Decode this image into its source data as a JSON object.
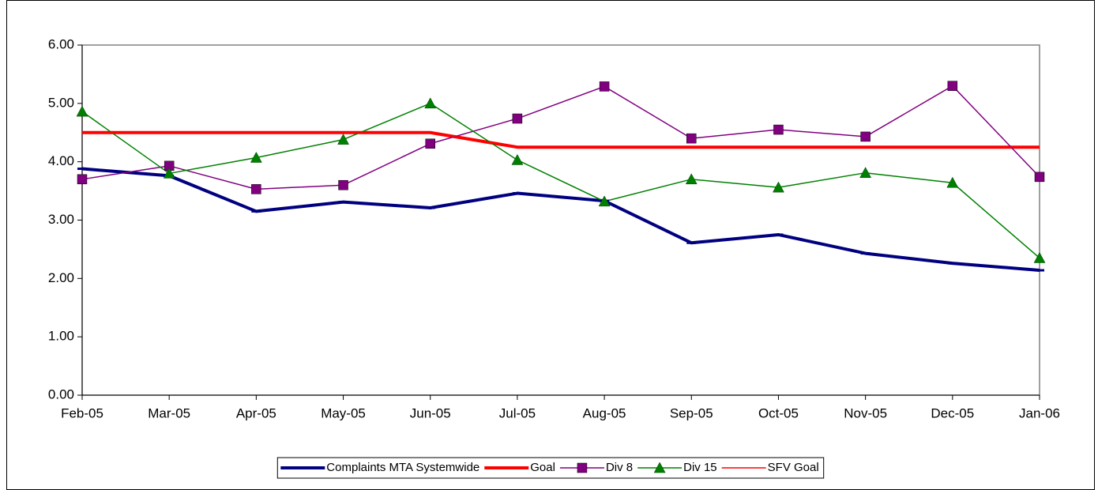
{
  "chart_data": {
    "type": "line",
    "categories": [
      "Feb-05",
      "Mar-05",
      "Apr-05",
      "May-05",
      "Jun-05",
      "Jul-05",
      "Aug-05",
      "Sep-05",
      "Oct-05",
      "Nov-05",
      "Dec-05",
      "Jan-06"
    ],
    "series": [
      {
        "name": "Complaints MTA Systemwide",
        "color": "#000080",
        "width": 4,
        "marker": "dash",
        "values": [
          3.88,
          3.76,
          3.15,
          3.31,
          3.21,
          3.46,
          3.33,
          2.61,
          2.75,
          2.43,
          2.26,
          2.14
        ]
      },
      {
        "name": "Goal",
        "color": "#ff0000",
        "width": 4,
        "marker": "none",
        "values": [
          4.5,
          4.5,
          4.5,
          4.5,
          4.5,
          4.25,
          4.25,
          4.25,
          4.25,
          4.25,
          4.25,
          4.25
        ]
      },
      {
        "name": "Div 8",
        "color": "#800080",
        "width": 1.5,
        "marker": "square",
        "values": [
          3.7,
          3.93,
          3.53,
          3.6,
          4.31,
          4.74,
          5.29,
          4.4,
          4.55,
          4.43,
          5.3,
          3.74
        ]
      },
      {
        "name": "Div 15",
        "color": "#008000",
        "width": 1.5,
        "marker": "triangle",
        "values": [
          4.86,
          3.8,
          4.07,
          4.38,
          5.0,
          4.03,
          3.32,
          3.7,
          3.56,
          3.81,
          3.64,
          2.35
        ]
      },
      {
        "name": "SFV Goal",
        "color": "#ff0000",
        "width": 1.5,
        "marker": "none",
        "values": [
          4.5,
          4.5,
          4.5,
          4.5,
          4.5,
          4.25,
          4.25,
          4.25,
          4.25,
          4.25,
          4.25,
          4.25
        ]
      }
    ],
    "ylim": [
      0,
      6
    ],
    "yticks": [
      {
        "value": 0,
        "label": "0.00"
      },
      {
        "value": 1,
        "label": "1.00"
      },
      {
        "value": 2,
        "label": "2.00"
      },
      {
        "value": 3,
        "label": "3.00"
      },
      {
        "value": 4,
        "label": "4.00"
      },
      {
        "value": 5,
        "label": "5.00"
      },
      {
        "value": 6,
        "label": "6.00"
      }
    ],
    "grid": false,
    "legend": "bottom"
  }
}
